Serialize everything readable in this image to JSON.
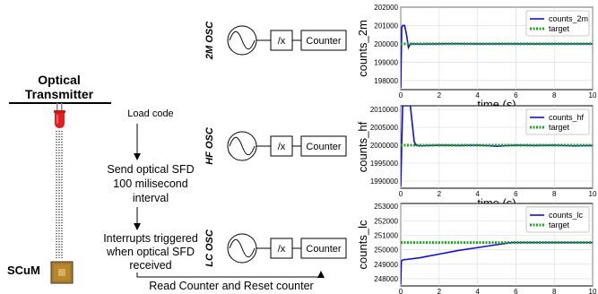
{
  "transmitter": {
    "label_line1": "Optical",
    "label_line2": "Transmitter"
  },
  "scum": {
    "label": "SCuM"
  },
  "flow": {
    "step1": "Load code",
    "step2_line1": "Send optical SFD",
    "step2_line2": "100 milisecond",
    "step2_line3": "interval",
    "step3_line1": "Interrupts triggered",
    "step3_line2": "when optical SFD",
    "step3_line3": "received",
    "bottom_caption": "Read Counter and Reset counter"
  },
  "oscillators": [
    {
      "name": "2M OSC",
      "divider": "/x",
      "counter": "Counter"
    },
    {
      "name": "HF OSC",
      "divider": "/x",
      "counter": "Counter"
    },
    {
      "name": "LC OSC",
      "divider": "/x",
      "counter": "Counter"
    }
  ],
  "colors": {
    "counts_line": "#1010d0",
    "target_line": "#20a020",
    "led": "#e02020",
    "chip": "#b8862b"
  },
  "chart_data": [
    {
      "type": "line",
      "xlabel": "time (s)",
      "ylabel": "counts_2m",
      "xlim": [
        0,
        10
      ],
      "ylim": [
        197500,
        202000
      ],
      "x_ticks": [
        "0",
        "2",
        "4",
        "6",
        "8",
        "10"
      ],
      "y_ticks": [
        "202000",
        "201000",
        "200000",
        "199000",
        "198000"
      ],
      "y_tick_values": [
        202000,
        201000,
        200000,
        199000,
        198000
      ],
      "grid": true,
      "legend_position": "top-right",
      "series": [
        {
          "name": "counts_2m",
          "style": "solid",
          "x": [
            0,
            0.05,
            0.1,
            0.2,
            0.3,
            0.4,
            0.5,
            0.7,
            1,
            2,
            3,
            4,
            5,
            6,
            7,
            8,
            9,
            10
          ],
          "y": [
            197600,
            200900,
            201000,
            201000,
            200500,
            199800,
            200000,
            200000,
            199980,
            200000,
            200010,
            199990,
            200000,
            200000,
            199990,
            200000,
            200000,
            200000
          ]
        },
        {
          "name": "target",
          "style": "dotted",
          "x": [
            0,
            10
          ],
          "y": [
            200000,
            200000
          ]
        }
      ]
    },
    {
      "type": "line",
      "xlabel": "time (s)",
      "ylabel": "counts_hf",
      "xlim": [
        0,
        10
      ],
      "ylim": [
        1988000,
        2011000
      ],
      "x_ticks": [
        "0",
        "2",
        "4",
        "6",
        "8",
        "10"
      ],
      "y_ticks": [
        "2010000",
        "2005000",
        "2000000",
        "1995000",
        "1990000"
      ],
      "y_tick_values": [
        2010000,
        2005000,
        2000000,
        1995000,
        1990000
      ],
      "grid": true,
      "legend_position": "top-right",
      "series": [
        {
          "name": "counts_hf",
          "style": "solid",
          "x": [
            0,
            0.05,
            0.1,
            0.2,
            0.5,
            0.7,
            0.8,
            1,
            2,
            3,
            4,
            5,
            6,
            7,
            8,
            9,
            10
          ],
          "y": [
            1988500,
            2000000,
            2011000,
            2011000,
            2011000,
            2001000,
            2000000,
            1999800,
            2000000,
            1999900,
            2000000,
            1999700,
            2000000,
            1999900,
            2000000,
            1999800,
            1999900
          ]
        },
        {
          "name": "target",
          "style": "dotted",
          "x": [
            0,
            10
          ],
          "y": [
            2000000,
            2000000
          ]
        }
      ]
    },
    {
      "type": "line",
      "xlabel": "time (s)",
      "ylabel": "counts_lc",
      "xlim": [
        0,
        10
      ],
      "ylim": [
        247500,
        253200
      ],
      "x_ticks": [
        "0",
        "2",
        "4",
        "6",
        "8",
        "10"
      ],
      "y_ticks": [
        "253000",
        "252000",
        "251000",
        "250000",
        "249000",
        "248000"
      ],
      "y_tick_values": [
        253000,
        252000,
        251000,
        250000,
        249000,
        248000
      ],
      "grid": true,
      "legend_position": "top-right",
      "series": [
        {
          "name": "counts_lc",
          "style": "solid",
          "x": [
            0,
            0.03,
            0.1,
            1,
            2,
            3,
            4,
            5,
            5.8,
            6,
            7,
            8,
            9,
            10
          ],
          "y": [
            247600,
            249200,
            249300,
            249450,
            249700,
            249950,
            250150,
            250350,
            250500,
            250500,
            250500,
            250500,
            250500,
            250500
          ]
        },
        {
          "name": "target",
          "style": "dotted",
          "x": [
            0,
            10
          ],
          "y": [
            250500,
            250500
          ]
        }
      ]
    }
  ]
}
